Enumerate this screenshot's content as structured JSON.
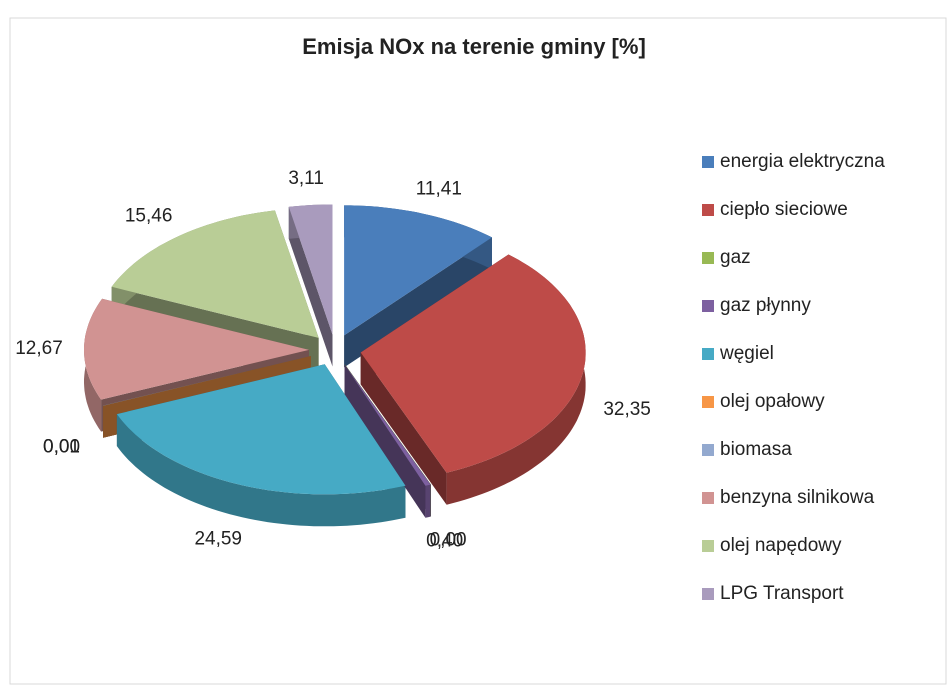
{
  "chart_data": {
    "type": "pie3d",
    "title": "Emisja NOx na terenie gminy [%]",
    "categories": [
      "energia elektryczna",
      "ciepło sieciowe",
      "gaz",
      "gaz płynny",
      "węgiel",
      "olej opałowy",
      "biomasa",
      "benzyna silnikowa",
      "olej napędowy",
      "LPG Transport"
    ],
    "values": [
      11.41,
      32.35,
      0.0,
      0.4,
      24.59,
      0.0,
      0.01,
      12.67,
      15.46,
      3.11
    ],
    "value_labels": [
      "11,41",
      "32,35",
      "0,00",
      "0,40",
      "24,59",
      "0,00",
      "0,01",
      "12,67",
      "15,46",
      "3,11"
    ],
    "colors": [
      "#4a7ebb",
      "#be4b48",
      "#98b954",
      "#7d60a0",
      "#46aac5",
      "#f79646",
      "#93a9cf",
      "#d19392",
      "#b9cd96",
      "#a99bbd"
    ],
    "legend": "right"
  }
}
